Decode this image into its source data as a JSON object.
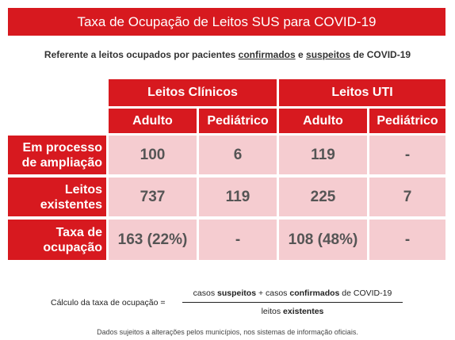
{
  "header": {
    "title": "Taxa de Ocupação de Leitos SUS para COVID-19",
    "subtitle": [
      "Referente a leitos ocupados por pacientes ",
      "confirmados",
      " e ",
      "suspeitos",
      " de COVID-19"
    ]
  },
  "table": {
    "groups": [
      "Leitos Clínicos",
      "Leitos UTI"
    ],
    "columns": [
      "Adulto",
      "Pediátrico",
      "Adulto",
      "Pediátrico"
    ],
    "rows": [
      {
        "label": "Em processo de ampliação",
        "cells": [
          "100",
          "6",
          "119",
          "-"
        ]
      },
      {
        "label": "Leitos existentes",
        "cells": [
          "737",
          "119",
          "225",
          "7"
        ]
      },
      {
        "label": "Taxa de ocupação",
        "cells": [
          "163 (22%)",
          "-",
          "108 (48%)",
          "-"
        ]
      }
    ]
  },
  "formula": {
    "label": "Cálculo da taxa de ocupação =",
    "numerator": [
      "casos ",
      "suspeitos",
      " + casos ",
      "confirmados",
      " de COVID-19"
    ],
    "denominator": [
      "leitos ",
      "existentes"
    ]
  },
  "footnote": "Dados sujeitos a alterações pelos municípios, nos sistemas de informação oficiais."
}
